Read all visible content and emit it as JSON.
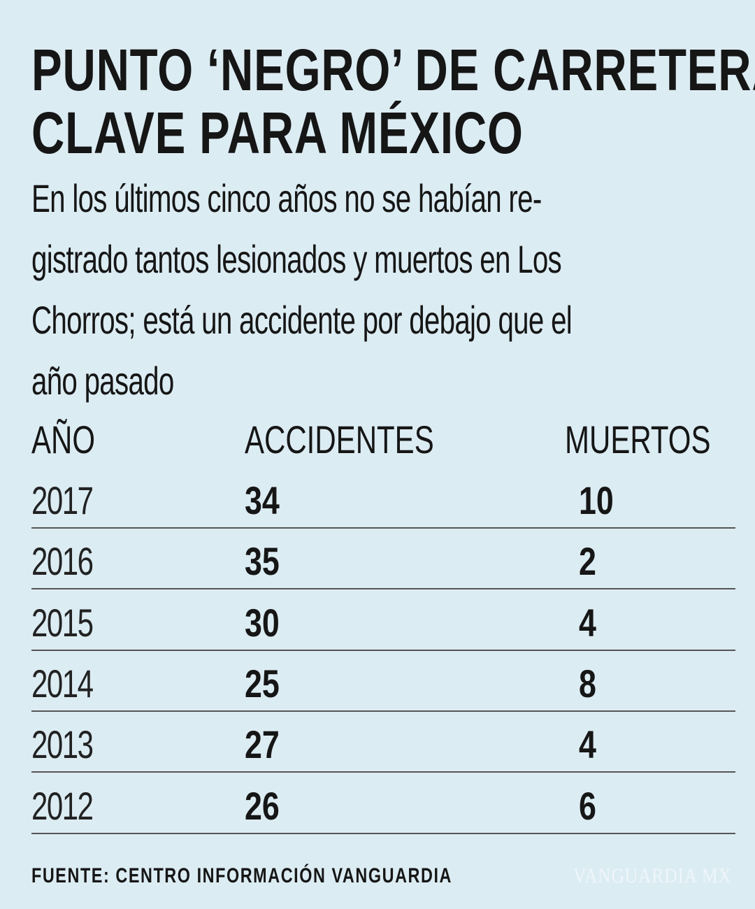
{
  "title_lines": [
    "PUNTO ‘NEGRO’ DE CARRETERA",
    "CLAVE PARA MÉXICO"
  ],
  "subtitle_lines": [
    "En los últimos cinco años no se habían re-",
    "gistrado tantos lesionados y muertos en Los",
    "Chorros; está un accidente por debajo que el",
    "año pasado"
  ],
  "chart_data": {
    "type": "table",
    "title": "PUNTO ‘NEGRO’ DE CARRETERA CLAVE PARA MÉXICO",
    "columns": [
      "AÑO",
      "ACCIDENTES",
      "MUERTOS"
    ],
    "rows": [
      {
        "year": "2017",
        "accidentes": "34",
        "muertos": "10"
      },
      {
        "year": "2016",
        "accidentes": "35",
        "muertos": "2"
      },
      {
        "year": "2015",
        "accidentes": "30",
        "muertos": "4"
      },
      {
        "year": "2014",
        "accidentes": "25",
        "muertos": "8"
      },
      {
        "year": "2013",
        "accidentes": "27",
        "muertos": "4"
      },
      {
        "year": "2012",
        "accidentes": "26",
        "muertos": "6"
      }
    ]
  },
  "source": "FUENTE: CENTRO INFORMACIÓN VANGUARDIA",
  "watermark": "VANGUARDIA MX",
  "colors": {
    "background": "#dcecf3",
    "text": "#161616"
  }
}
